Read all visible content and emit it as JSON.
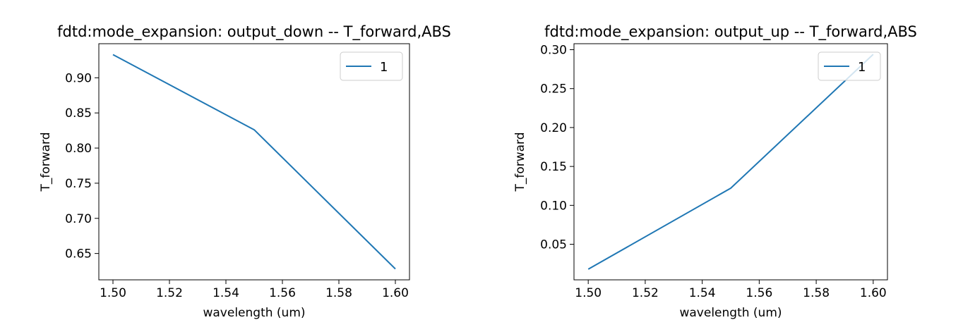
{
  "chart_data": [
    {
      "type": "line",
      "title": "fdtd:mode_expansion: output_down -- T_forward,ABS",
      "xlabel": "wavelength (um)",
      "ylabel": "T_forward",
      "xlim": [
        1.495,
        1.605
      ],
      "ylim": [
        0.6125,
        0.9485
      ],
      "xticks": [
        1.5,
        1.52,
        1.54,
        1.56,
        1.58,
        1.6
      ],
      "xtick_labels": [
        "1.50",
        "1.52",
        "1.54",
        "1.56",
        "1.58",
        "1.60"
      ],
      "yticks": [
        0.65,
        0.7,
        0.75,
        0.8,
        0.85,
        0.9
      ],
      "ytick_labels": [
        "0.65",
        "0.70",
        "0.75",
        "0.80",
        "0.85",
        "0.90"
      ],
      "grid": false,
      "legend_position": "top-right",
      "series": [
        {
          "name": "1",
          "color": "#1f77b4",
          "x": [
            1.5,
            1.55,
            1.6
          ],
          "y": [
            0.933,
            0.826,
            0.628
          ]
        }
      ]
    },
    {
      "type": "line",
      "title": "fdtd:mode_expansion: output_up -- T_forward,ABS",
      "xlabel": "wavelength (um)",
      "ylabel": "T_forward",
      "xlim": [
        1.495,
        1.605
      ],
      "ylim": [
        0.0043,
        0.3077
      ],
      "xticks": [
        1.5,
        1.52,
        1.54,
        1.56,
        1.58,
        1.6
      ],
      "xtick_labels": [
        "1.50",
        "1.52",
        "1.54",
        "1.56",
        "1.58",
        "1.60"
      ],
      "yticks": [
        0.05,
        0.1,
        0.15,
        0.2,
        0.25,
        0.3
      ],
      "ytick_labels": [
        "0.05",
        "0.10",
        "0.15",
        "0.20",
        "0.25",
        "0.30"
      ],
      "grid": false,
      "legend_position": "top-right",
      "series": [
        {
          "name": "1",
          "color": "#1f77b4",
          "x": [
            1.5,
            1.55,
            1.6
          ],
          "y": [
            0.018,
            0.122,
            0.294
          ]
        }
      ]
    }
  ]
}
